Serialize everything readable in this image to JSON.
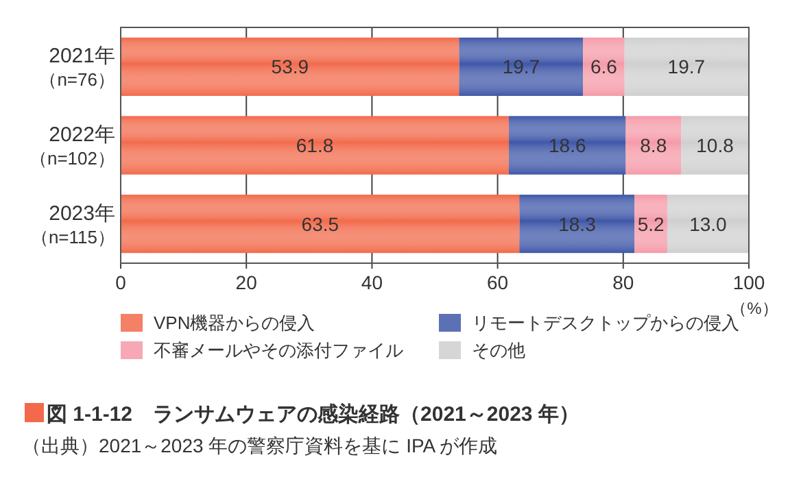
{
  "chart_data": {
    "type": "bar",
    "orientation": "horizontal",
    "stacked": true,
    "title": "図 1-1-12　ランサムウェアの感染経路（2021～2023 年）",
    "annotations": [
      "（出典）2021～2023 年の警察庁資料を基に IPA が作成"
    ],
    "xlabel": "（%）",
    "categories": [
      "2021年（n=76）",
      "2022年（n=102）",
      "2023年（n=115）"
    ],
    "series": [
      {
        "name": "VPN機器からの侵入",
        "color": "#f26a4b",
        "values": [
          53.9,
          61.8,
          63.5
        ],
        "value_labels": [
          "53.9",
          "61.8",
          "63.5"
        ]
      },
      {
        "name": "リモートデスクトップからの侵入",
        "color": "#3f57a8",
        "values": [
          19.7,
          18.6,
          18.3
        ],
        "value_labels": [
          "19.7",
          "18.6",
          "18.3"
        ]
      },
      {
        "name": "不審メールやその添付ファイル",
        "color": "#f59aa8",
        "values": [
          6.6,
          8.8,
          5.2
        ],
        "value_labels": [
          "6.6",
          "8.8",
          "5.2"
        ]
      },
      {
        "name": "その他",
        "color": "#cfcfcf",
        "values": [
          19.7,
          10.8,
          13.0
        ],
        "value_labels": [
          "19.7",
          "10.8",
          "13.0"
        ]
      }
    ],
    "xlim": [
      0,
      100
    ],
    "xticks": [
      0,
      20,
      40,
      60,
      80,
      100
    ],
    "grid": "x",
    "legend": "bottom"
  }
}
